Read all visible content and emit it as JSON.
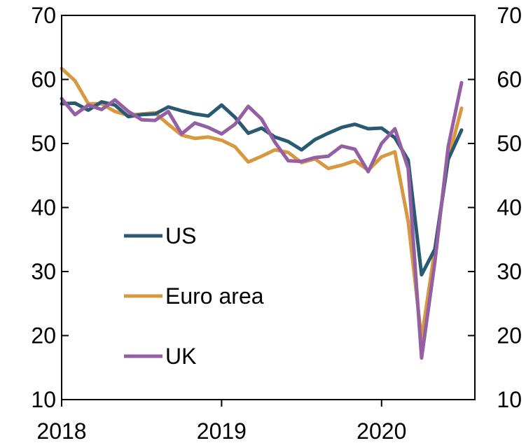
{
  "chart_data": {
    "type": "line",
    "title": "",
    "xlabel": "",
    "ylabel": "",
    "ylim": [
      10,
      70
    ],
    "y_ticks": [
      10,
      20,
      30,
      40,
      50,
      60,
      70
    ],
    "y_tick_labels": [
      "10",
      "20",
      "30",
      "40",
      "50",
      "60",
      "70"
    ],
    "right_y_tick_labels": [
      "10",
      "20",
      "30",
      "40",
      "50",
      "60",
      "70"
    ],
    "x_range": [
      "2018-01",
      "2020-08"
    ],
    "x_ticks": [
      "2018-01",
      "2019-01",
      "2020-01"
    ],
    "x_tick_labels": [
      "2018",
      "2019",
      "2020"
    ],
    "grid": false,
    "legend_position": "lower-left inside",
    "x": [
      "2018-01",
      "2018-02",
      "2018-03",
      "2018-04",
      "2018-05",
      "2018-06",
      "2018-07",
      "2018-08",
      "2018-09",
      "2018-10",
      "2018-11",
      "2018-12",
      "2019-01",
      "2019-02",
      "2019-03",
      "2019-04",
      "2019-05",
      "2019-06",
      "2019-07",
      "2019-08",
      "2019-09",
      "2019-10",
      "2019-11",
      "2019-12",
      "2020-01",
      "2020-02",
      "2020-03",
      "2020-04",
      "2020-05",
      "2020-06",
      "2020-07"
    ],
    "series": [
      {
        "name": "US",
        "color": "#2a5a73",
        "values": [
          56.2,
          56.3,
          55.2,
          56.5,
          56.0,
          54.2,
          54.5,
          54.6,
          55.7,
          55.1,
          54.6,
          54.3,
          56.0,
          54.1,
          51.6,
          52.4,
          51.0,
          50.3,
          49.0,
          50.6,
          51.6,
          52.5,
          53.0,
          52.3,
          52.4,
          50.9,
          47.4,
          29.5,
          33.5,
          47.5,
          52.1
        ]
      },
      {
        "name": "Euro area",
        "color": "#d89840",
        "values": [
          61.7,
          59.8,
          56.2,
          56.2,
          55.0,
          54.4,
          54.6,
          54.8,
          53.0,
          51.3,
          50.8,
          51.0,
          50.5,
          49.5,
          47.1,
          48.0,
          49.0,
          48.6,
          47.0,
          47.6,
          46.1,
          46.6,
          47.3,
          45.8,
          47.9,
          48.7,
          37.8,
          19.5,
          33.5,
          47.5,
          55.5
        ]
      },
      {
        "name": "UK",
        "color": "#945fa3",
        "values": [
          57.0,
          54.5,
          56.0,
          55.3,
          56.8,
          55.0,
          53.7,
          53.6,
          55.0,
          51.5,
          53.2,
          52.5,
          51.5,
          53.0,
          55.8,
          53.8,
          50.2,
          47.3,
          47.2,
          47.8,
          48.0,
          49.6,
          49.1,
          45.6,
          50.0,
          52.3,
          46.1,
          16.5,
          31.5,
          49.5,
          59.5
        ]
      }
    ]
  }
}
